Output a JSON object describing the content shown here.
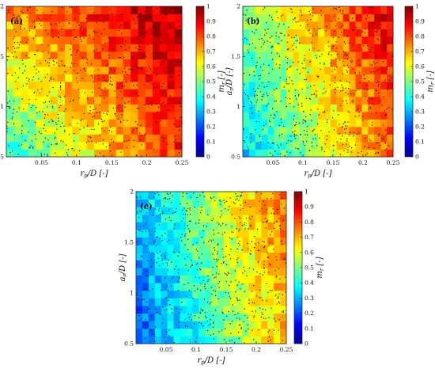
{
  "chart_data": [
    {
      "type": "heatmap",
      "panel_label": "(a)",
      "xlabel": "r_p/D [-]",
      "ylabel": "a_r/D [-]",
      "xlim": [
        0,
        0.25
      ],
      "ylim": [
        0.5,
        2
      ],
      "xticks": [
        "0.05",
        "0.1",
        "0.15",
        "0.2",
        "0.25"
      ],
      "yticks": [
        "0.5",
        "1",
        "1.5",
        "2"
      ],
      "colorbar": {
        "label": "m_r [-]",
        "range": [
          0,
          1
        ],
        "ticks": [
          "0",
          "0.1",
          "0.2",
          "0.3",
          "0.4",
          "0.5",
          "0.6",
          "0.7",
          "0.8",
          "0.9",
          "1"
        ],
        "colormap": "jet"
      },
      "value_trend": "m_r rises from about 0.4 at low r_p/D and low a_r/D to about 1 at high r_p/D and high a_r/D",
      "corner_values": {
        "x0_y0": 0.4,
        "x1_y0": 0.85,
        "x0_y1": 0.75,
        "x1_y1": 0.95
      }
    },
    {
      "type": "heatmap",
      "panel_label": "(b)",
      "xlabel": "r_p/D [-]",
      "ylabel": "a_r/D [-]",
      "xlim": [
        0,
        0.25
      ],
      "ylim": [
        0.5,
        2
      ],
      "xticks": [
        "0.05",
        "0.1",
        "0.15",
        "0.2",
        "0.25"
      ],
      "yticks": [
        "0.5",
        "1",
        "1.5",
        "2"
      ],
      "colorbar": {
        "label": "m_r [-]",
        "range": [
          0,
          1
        ],
        "ticks": [
          "0",
          "0.1",
          "0.2",
          "0.3",
          "0.4",
          "0.5",
          "0.6",
          "0.7",
          "0.8",
          "0.9",
          "1"
        ],
        "colormap": "jet"
      },
      "value_trend": "m_r rises from about 0.3 at low r_p/D to about 0.9 at high r_p/D",
      "corner_values": {
        "x0_y0": 0.32,
        "x1_y0": 0.78,
        "x0_y1": 0.5,
        "x1_y1": 0.92
      }
    },
    {
      "type": "heatmap",
      "panel_label": "(c)",
      "xlabel": "r_p/D [-]",
      "ylabel": "a_r/D [-]",
      "xlim": [
        0,
        0.25
      ],
      "ylim": [
        0.5,
        2
      ],
      "xticks": [
        "0.05",
        "0.1",
        "0.15",
        "0.2",
        "0.25"
      ],
      "yticks": [
        "0.5",
        "1",
        "1.5",
        "2"
      ],
      "colorbar": {
        "label": "m_r [-]",
        "range": [
          0,
          1
        ],
        "ticks": [
          "0",
          "0.1",
          "0.2",
          "0.3",
          "0.4",
          "0.5",
          "0.6",
          "0.7",
          "0.8",
          "0.9",
          "1"
        ],
        "colormap": "jet"
      },
      "value_trend": "m_r rises from about 0.2 at low r_p/D to about 0.8 at high r_p/D",
      "corner_values": {
        "x0_y0": 0.2,
        "x1_y0": 0.68,
        "x0_y1": 0.3,
        "x1_y1": 0.78
      }
    }
  ]
}
